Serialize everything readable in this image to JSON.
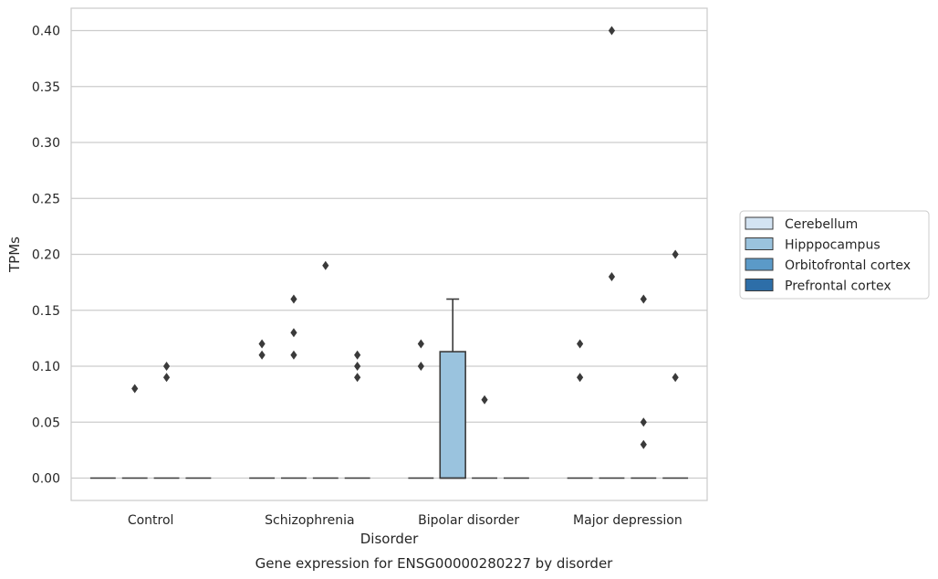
{
  "chart_data": {
    "type": "box",
    "title": "",
    "caption": "Gene expression for ENSG00000280227 by disorder",
    "xlabel": "Disorder",
    "ylabel": "TPMs",
    "ylim": [
      -0.02,
      0.42
    ],
    "yticks": [
      "0.00",
      "0.05",
      "0.10",
      "0.15",
      "0.20",
      "0.25",
      "0.30",
      "0.35",
      "0.40"
    ],
    "grid": true,
    "legend_position": "right",
    "categories": [
      "Control",
      "Schizophrenia",
      "Bipolar disorder",
      "Major depression"
    ],
    "series": [
      {
        "name": "Cerebellum",
        "color": "#d3e3f2",
        "boxes": [
          {
            "category": "Control",
            "q1": 0,
            "median": 0,
            "q3": 0,
            "whisker_low": 0,
            "whisker_high": 0,
            "outliers": []
          },
          {
            "category": "Schizophrenia",
            "q1": 0,
            "median": 0,
            "q3": 0,
            "whisker_low": 0,
            "whisker_high": 0,
            "outliers": [
              0.12,
              0.11
            ]
          },
          {
            "category": "Bipolar disorder",
            "q1": 0,
            "median": 0,
            "q3": 0,
            "whisker_low": 0,
            "whisker_high": 0,
            "outliers": [
              0.12,
              0.1
            ]
          },
          {
            "category": "Major depression",
            "q1": 0,
            "median": 0,
            "q3": 0,
            "whisker_low": 0,
            "whisker_high": 0,
            "outliers": [
              0.12,
              0.09
            ]
          }
        ]
      },
      {
        "name": "Hipppocampus",
        "color": "#9ac3de",
        "boxes": [
          {
            "category": "Control",
            "q1": 0,
            "median": 0,
            "q3": 0,
            "whisker_low": 0,
            "whisker_high": 0,
            "outliers": [
              0.08
            ]
          },
          {
            "category": "Schizophrenia",
            "q1": 0,
            "median": 0,
            "q3": 0,
            "whisker_low": 0,
            "whisker_high": 0,
            "outliers": [
              0.16,
              0.13,
              0.11
            ]
          },
          {
            "category": "Bipolar disorder",
            "q1": 0,
            "median": 0,
            "q3": 0.113,
            "whisker_low": 0,
            "whisker_high": 0.16,
            "outliers": []
          },
          {
            "category": "Major depression",
            "q1": 0,
            "median": 0,
            "q3": 0,
            "whisker_low": 0,
            "whisker_high": 0,
            "outliers": [
              0.4,
              0.18
            ]
          }
        ]
      },
      {
        "name": "Orbitofrontal cortex",
        "color": "#5b9ac8",
        "boxes": [
          {
            "category": "Control",
            "q1": 0,
            "median": 0,
            "q3": 0,
            "whisker_low": 0,
            "whisker_high": 0,
            "outliers": [
              0.1,
              0.09
            ]
          },
          {
            "category": "Schizophrenia",
            "q1": 0,
            "median": 0,
            "q3": 0,
            "whisker_low": 0,
            "whisker_high": 0,
            "outliers": [
              0.19
            ]
          },
          {
            "category": "Bipolar disorder",
            "q1": 0,
            "median": 0,
            "q3": 0,
            "whisker_low": 0,
            "whisker_high": 0,
            "outliers": [
              0.07
            ]
          },
          {
            "category": "Major depression",
            "q1": 0,
            "median": 0,
            "q3": 0,
            "whisker_low": 0,
            "whisker_high": 0,
            "outliers": [
              0.16,
              0.05,
              0.03
            ]
          }
        ]
      },
      {
        "name": "Prefrontal cortex",
        "color": "#2d6ea8",
        "boxes": [
          {
            "category": "Control",
            "q1": 0,
            "median": 0,
            "q3": 0,
            "whisker_low": 0,
            "whisker_high": 0,
            "outliers": []
          },
          {
            "category": "Schizophrenia",
            "q1": 0,
            "median": 0,
            "q3": 0,
            "whisker_low": 0,
            "whisker_high": 0,
            "outliers": [
              0.11,
              0.1,
              0.09
            ]
          },
          {
            "category": "Bipolar disorder",
            "q1": 0,
            "median": 0,
            "q3": 0,
            "whisker_low": 0,
            "whisker_high": 0,
            "outliers": []
          },
          {
            "category": "Major depression",
            "q1": 0,
            "median": 0,
            "q3": 0,
            "whisker_low": 0,
            "whisker_high": 0,
            "outliers": [
              0.2,
              0.09
            ]
          }
        ]
      }
    ]
  }
}
